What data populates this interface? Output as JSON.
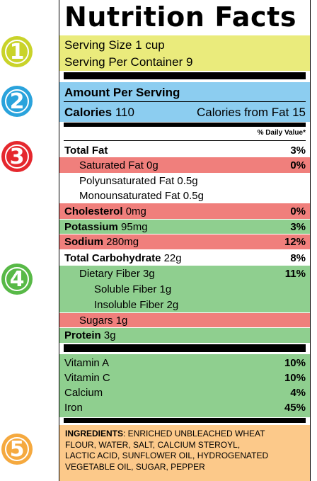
{
  "badges": [
    {
      "num": "1",
      "color": "#c9d32a"
    },
    {
      "num": "2",
      "color": "#2aa3dc"
    },
    {
      "num": "3",
      "color": "#e5282e"
    },
    {
      "num": "4",
      "color": "#58b947"
    },
    {
      "num": "5",
      "color": "#f5a93f"
    }
  ],
  "highlight_colors": {
    "yellow": "#eaeb7c",
    "blue": "#8ccdf0",
    "red": "#f07f7c",
    "green": "#8fcf8f",
    "orange": "#fcc98a"
  },
  "title": "Nutrition Facts",
  "serving": {
    "size": "Serving Size 1 cup",
    "per_container": "Serving Per Container 9"
  },
  "amount_per_serving": "Amount Per Serving",
  "calories": {
    "label": "Calories",
    "value": "110",
    "from_fat": "Calories from Fat 15"
  },
  "daily_value_header": "% Daily Value*",
  "nutrients": {
    "total_fat": {
      "label": "Total Fat",
      "amount": "",
      "pct": "3%"
    },
    "saturated_fat": {
      "label": "Saturated Fat 0g",
      "pct": "0%"
    },
    "poly_fat": {
      "label": "Polyunsaturated Fat 0.5g"
    },
    "mono_fat": {
      "label": "Monounsaturated Fat 0.5g"
    },
    "cholesterol": {
      "label": "Cholesterol",
      "amount": "0mg",
      "pct": "0%"
    },
    "potassium": {
      "label": "Potassium",
      "amount": "95mg",
      "pct": "3%"
    },
    "sodium": {
      "label": "Sodium",
      "amount": "280mg",
      "pct": "12%"
    },
    "total_carb": {
      "label": "Total Carbohydrate",
      "amount": "22g",
      "pct": "8%"
    },
    "dietary_fiber": {
      "label": "Dietary Fiber 3g",
      "pct": "11%"
    },
    "soluble_fiber": {
      "label": "Soluble Fiber 1g"
    },
    "insoluble_fiber": {
      "label": "Insoluble Fiber 2g"
    },
    "sugars": {
      "label": "Sugars 1g"
    },
    "protein": {
      "label": "Protein",
      "amount": "3g"
    }
  },
  "vitamins": [
    {
      "label": "Vitamin A",
      "pct": "10%"
    },
    {
      "label": "Vitamin C",
      "pct": "10%"
    },
    {
      "label": "Calcium",
      "pct": "4%"
    },
    {
      "label": "Iron",
      "pct": "45%"
    }
  ],
  "ingredients": {
    "label": "INGREDIENTS",
    "line1": ": ENRICHED UNBLEACHED WHEAT",
    "line2": "FLOUR, WATER, SALT, CALCIUM STEROYL,",
    "line3": "LACTIC ACID, SUNFLOWER OIL, HYDROGENATED",
    "line4": "VEGETABLE OIL, SUGAR, PEPPER"
  }
}
